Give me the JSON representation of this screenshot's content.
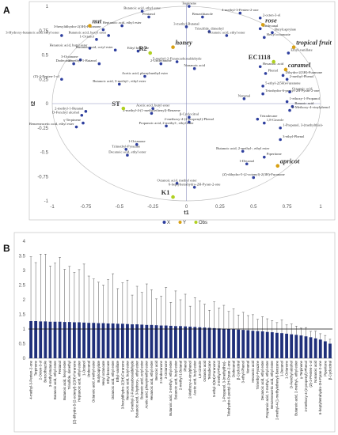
{
  "panels": {
    "a": "A",
    "b": "B"
  },
  "chart_data": [
    {
      "type": "scatter",
      "xlabel": "t1",
      "ylabel": "t2",
      "xlim": [
        -1,
        1
      ],
      "ylim": [
        -1,
        1
      ],
      "xticks": [
        "-1",
        "-0.75",
        "-0.5",
        "-0.25",
        "0",
        "0.25",
        "0.5",
        "0.75",
        "1"
      ],
      "yticks": [
        "1",
        "0.75",
        "0.5",
        "0.25",
        "0",
        "-0.25",
        "-0.5",
        "-0.75",
        "-1"
      ],
      "xtick_values": [
        -1,
        -0.75,
        -0.5,
        -0.25,
        0,
        0.25,
        0.5,
        0.75,
        1
      ],
      "ytick_values": [
        1,
        0.75,
        0.5,
        0.25,
        0,
        -0.25,
        -0.5,
        -0.75,
        -1
      ],
      "grid": false,
      "legend": {
        "position": "bottom",
        "entries": [
          {
            "label": "X",
            "color": "#2d3e9e"
          },
          {
            "label": "Y",
            "color": "#d8a012"
          },
          {
            "label": "Obs",
            "color": "#b0d020"
          }
        ]
      },
      "points_x": [
        {
          "label": "Butanoic acid, ethyl ester",
          "x": -0.33,
          "y": 0.95
        },
        {
          "label": "Pentanol",
          "x": -0.28,
          "y": 0.89
        },
        {
          "label": "Benzothiazole",
          "x": 0.12,
          "y": 0.89
        },
        {
          "label": "4-methyl-3-Penten-2-one",
          "x": 0.4,
          "y": 0.93
        },
        {
          "label": "2-octen-3-ol",
          "x": 0.55,
          "y": 0.88
        },
        {
          "label": "Terpinene",
          "x": 0.02,
          "y": 1.0
        },
        {
          "label": "3-methyl-Butanal",
          "x": 0.0,
          "y": 0.79
        },
        {
          "label": "Trisulfide, dimethyl",
          "x": 0.17,
          "y": 0.74
        },
        {
          "label": "Undecanal",
          "x": 0.55,
          "y": 0.77
        },
        {
          "label": "Butylcaprylate",
          "x": 0.64,
          "y": 0.73
        },
        {
          "label": "Heptanoic acid, ethyl ester",
          "x": -0.48,
          "y": 0.8
        },
        {
          "label": "3-hexyldihydro-2(3H)-Furanone",
          "x": -0.62,
          "y": 0.76
        },
        {
          "label": "1-Octanol",
          "x": -0.67,
          "y": 0.66
        },
        {
          "label": "3-Hydroxy-butanoic acid, ethyl ester",
          "x": -0.93,
          "y": 0.7
        },
        {
          "label": "Butanoic acid, hexyl ester",
          "x": -0.58,
          "y": 0.7
        },
        {
          "label": "Octanoic acid, ethyl ester",
          "x": 0.3,
          "y": 0.7
        },
        {
          "label": "Hexyl octanoate",
          "x": 0.58,
          "y": 0.68
        },
        {
          "label": "Hexanoic acid, butyl ester",
          "x": -0.72,
          "y": 0.57
        },
        {
          "label": "Butanoic acid, octyl ester",
          "x": -0.53,
          "y": 0.55
        },
        {
          "label": "Ethyl-vanillate",
          "x": 0.76,
          "y": 0.52
        },
        {
          "label": "Ethyl benzoate",
          "x": -0.36,
          "y": 0.54
        },
        {
          "label": "3-Octanone",
          "x": -0.79,
          "y": 0.45
        },
        {
          "label": "Dodecanal",
          "x": -0.84,
          "y": 0.41
        },
        {
          "label": "3-methyl-1-Butanol",
          "x": -0.65,
          "y": 0.41
        },
        {
          "label": "2-Undecanone",
          "x": -0.19,
          "y": 0.41
        },
        {
          "label": "5-methyl-2-Furancarboxaldehyde",
          "x": -0.07,
          "y": 0.43
        },
        {
          "label": "Nonanoic acid",
          "x": 0.06,
          "y": 0.36
        },
        {
          "label": "Hexanoic acid",
          "x": 0.55,
          "y": 0.38
        },
        {
          "label": "Dihydro-2(3H)-Furanone",
          "x": 0.72,
          "y": 0.29
        },
        {
          "label": "Phenol",
          "x": 0.59,
          "y": 0.31
        },
        {
          "label": "2-methyl-Phenol",
          "x": 0.75,
          "y": 0.25
        },
        {
          "label": "Acetic acid, phenylmethyl ester",
          "x": -0.31,
          "y": 0.28
        },
        {
          "label": "(Z)-2-Penten-1-ol",
          "x": -0.93,
          "y": 0.25
        },
        {
          "label": "Butanoic acid, 3-methyl-, ethyl ester",
          "x": -0.5,
          "y": 0.2
        },
        {
          "label": "5-ethyl-2(5H)-Furanone",
          "x": 0.57,
          "y": 0.18
        },
        {
          "label": "Tetrahydro-6-pentyl-2H-Pyran-2-one",
          "x": 0.57,
          "y": 0.1
        },
        {
          "label": "Octanoic acid",
          "x": 0.77,
          "y": 0.12
        },
        {
          "label": "Nonanal",
          "x": 0.43,
          "y": 0.05
        },
        {
          "label": "1-ethoxy-1-Propanol",
          "x": 0.75,
          "y": 0.02
        },
        {
          "label": "2-methyl-1-Butanal",
          "x": -0.75,
          "y": -0.08
        },
        {
          "label": "D-Fenchyl alcohol",
          "x": -0.78,
          "y": -0.12
        },
        {
          "label": "Acetic acid, butyl ester",
          "x": -0.25,
          "y": -0.05
        },
        {
          "label": "2-methyl-4-(1-methylethenyl)-Benzene",
          "x": -0.26,
          "y": -0.1
        },
        {
          "label": "Benzoic acid",
          "x": 0.79,
          "y": -0.03
        },
        {
          "label": "2-Methoxy-4-vinylphenol",
          "x": 0.77,
          "y": -0.07
        },
        {
          "label": "β-Cyclocitral",
          "x": 0.02,
          "y": -0.14
        },
        {
          "label": "2-methoxy-4-(2-propenyl)-Phenol",
          "x": 0.02,
          "y": -0.19
        },
        {
          "label": "Propanoic acid, 2-methyl-, ethyl ester",
          "x": -0.15,
          "y": -0.23
        },
        {
          "label": "Tetradecane",
          "x": 0.53,
          "y": -0.16
        },
        {
          "label": "γ-Terpinene",
          "x": -0.77,
          "y": -0.2
        },
        {
          "label": "Benzeneacetic acid, ethyl ester",
          "x": -0.82,
          "y": -0.24
        },
        {
          "label": "1,8-Cineole",
          "x": 0.58,
          "y": -0.2
        },
        {
          "label": "1-Propanol, 3-(methylthio)-",
          "x": 0.7,
          "y": -0.25
        },
        {
          "label": "1-Octanone",
          "x": -0.37,
          "y": -0.42
        },
        {
          "label": "Trimethyl-Pyrazine",
          "x": -0.45,
          "y": -0.47
        },
        {
          "label": "3-ethyl-Phenol",
          "x": 0.7,
          "y": -0.37
        },
        {
          "label": "Decanoic acid, ethyl ester",
          "x": -0.44,
          "y": -0.53
        },
        {
          "label": "Butanoic acid, 2-methyl-, ethyl ester",
          "x": 0.42,
          "y": -0.49
        },
        {
          "label": "Piperitone",
          "x": 0.58,
          "y": -0.55
        },
        {
          "label": "1-Decanol",
          "x": 0.45,
          "y": -0.62
        },
        {
          "label": "(Z)-dihydro-5-(2-octenyl)-2(3H)-Furanone",
          "x": 0.5,
          "y": -0.76
        },
        {
          "label": "Octanoic acid, methyl ester",
          "x": -0.07,
          "y": -0.82
        },
        {
          "label": "6-heptyltetrahydro-2H-Pyran-2-one",
          "x": 0.06,
          "y": -0.86
        }
      ],
      "points_y": [
        {
          "label": "nut",
          "x": -0.72,
          "y": 0.8,
          "color": "#d8a012"
        },
        {
          "label": "rose",
          "x": 0.57,
          "y": 0.81,
          "color": "#d8a012"
        },
        {
          "label": "tropical fruit",
          "x": 0.8,
          "y": 0.58,
          "color": "#d8a012"
        },
        {
          "label": "honey",
          "x": -0.1,
          "y": 0.58,
          "color": "#d8a012"
        },
        {
          "label": "caramel",
          "x": 0.74,
          "y": 0.35,
          "color": "#d8a012"
        },
        {
          "label": "apricot",
          "x": 0.68,
          "y": -0.64,
          "color": "#d8a012"
        }
      ],
      "points_obs": [
        {
          "label": "R2",
          "x": -0.27,
          "y": 0.52,
          "color": "#b0d020"
        },
        {
          "label": "ST",
          "x": -0.47,
          "y": -0.05,
          "color": "#b0d020"
        },
        {
          "label": "EC1118",
          "x": 0.65,
          "y": 0.43,
          "color": "#b0d020"
        },
        {
          "label": "K1",
          "x": -0.1,
          "y": -0.96,
          "color": "#b0d020"
        }
      ]
    },
    {
      "type": "bar",
      "ylim": [
        0,
        4
      ],
      "yticks": [
        "4",
        "3.5",
        "3",
        "2.5",
        "2",
        "1.5",
        "1",
        "0.5",
        "0"
      ],
      "ytick_values": [
        4,
        3.5,
        3,
        2.5,
        2,
        1.5,
        1,
        0.5,
        0
      ],
      "reference_line": 1,
      "bar_color": "#1f2f7a",
      "categories": [
        "4-methyl-3-Penten-2-one",
        "Terpinene",
        "2-Octen-3-ol",
        "Benzothiazole",
        "3-methyl-Butanal",
        "Butanoic acid, ethyl ester",
        "Pentanol",
        "Butanoic acid, hexyl ester",
        "Trisulfide, dimethyl",
        "(Z)-dihydro-5-(2-octenyl)-2(3H)-Furanone",
        "Heptanoic acid, ethyl ester",
        "1-Octanol",
        "Undecanal",
        "Octanoic acid, methyl ester",
        "Butylcaprylate",
        "Hexyl octanoate",
        "Ethyl benzoate",
        "Octanoic acid, ethyl ester",
        "Ethyl-vanillate",
        "3-hexyldihydro-2(3H)-Furanone",
        "Hexanoic acid, butyl ester",
        "5-methyl-2-Furancarboxaldehyde",
        "Butanoic acid, 3-hydroxy-, ethyl ester",
        "Butanoic acid, octyl ester",
        "Acetic acid, phenylmethyl ester",
        "Hexanoic acid, ethyl ester",
        "Benzoic acid",
        "2-Undecanone",
        "3-Octanone",
        "Butanoic acid, 3-methyl-, ethyl ester",
        "Butanoic acid, butyl ester",
        "2-methyl-1-Butanal",
        "Phenol",
        "2-Methoxy-4-vinylphenol",
        "Acetic acid, butyl ester",
        "1,8-Cineole",
        "Octanoic acid",
        "Tetradecane",
        "5-ethyl-2(5H)-Furanone",
        "2-methyl-Phenol",
        "1-Propanol, 3-(methylthio)-",
        "Tetrahydro-6-pentyl-2H-Pyran-2-one",
        "Dodecanal",
        "β-Cyclocitral",
        "3-ethyl-Phenol",
        "Nonanal",
        "Hexanoic acid",
        "Trimethyl-Pyrazine",
        "Decanoic acid, ethyl ester",
        "Propanoic acid, 2-methyl-, ethyl ester",
        "Benzeneacetic acid, ethyl ester",
        "2-methyl-4-(1-methylethenyl)-Benzene",
        "1-Decanol",
        "1-Octanone",
        "D-Fenchyl alcohol",
        "Butanoic acid, 2-methyl-, ethyl ester",
        "γ-Terpinene",
        "2-methoxy-4-(2-propenyl)-Phenol",
        "(Z)-2-Penten-1-ol",
        "Nonanoic acid",
        "6-heptyltetrahydro-2H-Pyran-2-one",
        "Piperitone",
        "β-Cyclocitral"
      ],
      "values": [
        1.27,
        1.27,
        1.26,
        1.26,
        1.25,
        1.25,
        1.25,
        1.24,
        1.24,
        1.23,
        1.23,
        1.22,
        1.21,
        1.21,
        1.2,
        1.2,
        1.19,
        1.19,
        1.18,
        1.18,
        1.17,
        1.16,
        1.16,
        1.15,
        1.14,
        1.14,
        1.13,
        1.12,
        1.12,
        1.11,
        1.1,
        1.1,
        1.09,
        1.08,
        1.07,
        1.06,
        1.05,
        1.04,
        1.03,
        1.02,
        1.01,
        1.0,
        0.99,
        0.98,
        0.97,
        0.96,
        0.94,
        0.93,
        0.92,
        0.9,
        0.89,
        0.87,
        0.86,
        0.84,
        0.82,
        0.8,
        0.78,
        0.75,
        0.72,
        0.68,
        0.64,
        0.58,
        0.5
      ],
      "errors": [
        2.2,
        2.0,
        2.3,
        2.3,
        1.9,
        2.0,
        2.2,
        1.8,
        1.9,
        1.7,
        1.8,
        2.0,
        1.6,
        1.5,
        1.4,
        1.3,
        1.5,
        1.7,
        1.2,
        1.4,
        1.5,
        1.0,
        1.3,
        1.1,
        1.4,
        1.2,
        0.9,
        1.0,
        1.3,
        0.8,
        1.2,
        0.9,
        1.1,
        0.7,
        1.0,
        0.9,
        0.8,
        0.6,
        0.9,
        0.7,
        0.8,
        0.6,
        0.7,
        0.5,
        0.6,
        0.5,
        0.55,
        0.4,
        0.5,
        0.45,
        0.4,
        0.35,
        0.45,
        0.3,
        0.35,
        0.3,
        0.25,
        0.3,
        0.2,
        0.25,
        0.2,
        0.2,
        0.15
      ]
    }
  ]
}
